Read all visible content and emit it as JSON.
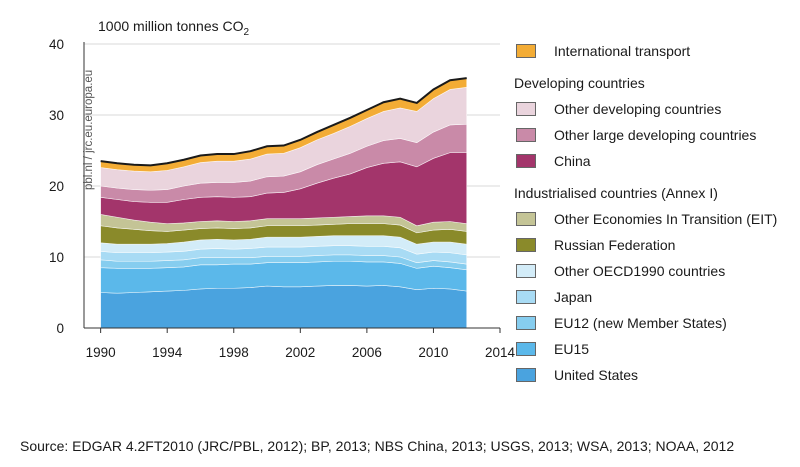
{
  "chart_data": {
    "type": "area",
    "ylabel_main": "1000 million tonnes CO",
    "ylabel_sub": "2",
    "watermark": "pbl.nl / jrc.eu.europa.eu",
    "x_ticks": [
      "1990",
      "1994",
      "1998",
      "2002",
      "2006",
      "2010",
      "2014"
    ],
    "y_ticks": [
      "0",
      "10",
      "20",
      "30",
      "40"
    ],
    "xlim": [
      1989,
      2014
    ],
    "ylim": [
      0,
      40
    ],
    "x": [
      1990,
      1991,
      1992,
      1993,
      1994,
      1995,
      1996,
      1997,
      1998,
      1999,
      2000,
      2001,
      2002,
      2003,
      2004,
      2005,
      2006,
      2007,
      2008,
      2009,
      2010,
      2011,
      2012
    ],
    "series": [
      {
        "name": "United States",
        "color": "#4aa3df",
        "values": [
          5.0,
          4.9,
          5.0,
          5.1,
          5.2,
          5.3,
          5.5,
          5.6,
          5.6,
          5.7,
          5.9,
          5.8,
          5.8,
          5.9,
          6.0,
          6.0,
          5.9,
          6.0,
          5.8,
          5.4,
          5.6,
          5.5,
          5.2
        ]
      },
      {
        "name": "EU15",
        "color": "#5bb8ea",
        "values": [
          3.5,
          3.5,
          3.4,
          3.3,
          3.3,
          3.3,
          3.4,
          3.3,
          3.4,
          3.3,
          3.3,
          3.4,
          3.4,
          3.4,
          3.4,
          3.4,
          3.4,
          3.3,
          3.3,
          3.0,
          3.1,
          3.0,
          3.0
        ]
      },
      {
        "name": "EU12 (new Member States)",
        "color": "#86cdef",
        "values": [
          1.1,
          1.0,
          1.0,
          1.0,
          1.0,
          1.0,
          1.0,
          1.0,
          0.9,
          0.9,
          0.9,
          0.9,
          0.9,
          0.9,
          0.9,
          0.9,
          0.9,
          0.9,
          0.9,
          0.8,
          0.8,
          0.8,
          0.8
        ]
      },
      {
        "name": "Japan",
        "color": "#a8dbf4",
        "values": [
          1.2,
          1.2,
          1.2,
          1.2,
          1.2,
          1.2,
          1.2,
          1.3,
          1.2,
          1.3,
          1.3,
          1.3,
          1.3,
          1.3,
          1.3,
          1.3,
          1.3,
          1.3,
          1.3,
          1.2,
          1.2,
          1.3,
          1.3
        ]
      },
      {
        "name": "Other OECD1990 countries",
        "color": "#d3ecf8",
        "values": [
          1.2,
          1.2,
          1.2,
          1.2,
          1.2,
          1.3,
          1.3,
          1.3,
          1.3,
          1.3,
          1.4,
          1.4,
          1.4,
          1.4,
          1.4,
          1.4,
          1.5,
          1.5,
          1.5,
          1.4,
          1.4,
          1.5,
          1.5
        ]
      },
      {
        "name": "Russian Federation",
        "color": "#8a8a2a",
        "values": [
          2.4,
          2.3,
          2.1,
          1.9,
          1.7,
          1.7,
          1.6,
          1.6,
          1.6,
          1.6,
          1.6,
          1.6,
          1.6,
          1.6,
          1.6,
          1.7,
          1.7,
          1.7,
          1.7,
          1.6,
          1.7,
          1.8,
          1.8
        ]
      },
      {
        "name": "Other Economies In Transition (EIT)",
        "color": "#c4c496",
        "values": [
          1.6,
          1.5,
          1.3,
          1.2,
          1.1,
          1.0,
          1.0,
          1.0,
          1.0,
          1.0,
          1.0,
          1.0,
          1.0,
          1.0,
          1.0,
          1.0,
          1.1,
          1.1,
          1.1,
          1.0,
          1.1,
          1.1,
          1.1
        ]
      },
      {
        "name": "China",
        "color": "#a3356b",
        "values": [
          2.4,
          2.5,
          2.6,
          2.8,
          3.0,
          3.3,
          3.4,
          3.4,
          3.4,
          3.4,
          3.6,
          3.7,
          4.2,
          4.9,
          5.5,
          6.0,
          6.8,
          7.4,
          7.8,
          8.3,
          9.0,
          9.7,
          10.0
        ]
      },
      {
        "name": "Other large developing countries",
        "color": "#c98aa8",
        "values": [
          1.6,
          1.6,
          1.7,
          1.7,
          1.8,
          1.9,
          2.0,
          2.0,
          2.1,
          2.2,
          2.3,
          2.3,
          2.4,
          2.6,
          2.7,
          2.9,
          3.0,
          3.2,
          3.3,
          3.4,
          3.7,
          3.9,
          4.0
        ]
      },
      {
        "name": "Other developing countries",
        "color": "#ead4dd",
        "values": [
          2.6,
          2.6,
          2.6,
          2.6,
          2.7,
          2.7,
          2.9,
          3.0,
          3.0,
          3.1,
          3.2,
          3.2,
          3.4,
          3.5,
          3.6,
          3.8,
          3.9,
          4.1,
          4.3,
          4.4,
          4.7,
          5.0,
          5.2
        ]
      },
      {
        "name": "International transport",
        "color": "#f3ac35",
        "values": [
          0.9,
          0.9,
          0.9,
          0.9,
          1.0,
          1.0,
          1.0,
          1.0,
          1.0,
          1.1,
          1.1,
          1.1,
          1.1,
          1.1,
          1.2,
          1.2,
          1.2,
          1.3,
          1.3,
          1.2,
          1.3,
          1.3,
          1.3
        ]
      }
    ],
    "legend": {
      "top_item": {
        "label": "International transport",
        "color": "#f3ac35"
      },
      "groups": [
        {
          "title": "Developing countries",
          "items": [
            {
              "label": "Other developing countries",
              "color": "#ead4dd"
            },
            {
              "label": "Other large developing countries",
              "color": "#c98aa8"
            },
            {
              "label": "China",
              "color": "#a3356b"
            }
          ]
        },
        {
          "title": "Industrialised countries (Annex I)",
          "items": [
            {
              "label": "Other Economies In Transition (EIT)",
              "color": "#c4c496"
            },
            {
              "label": "Russian Federation",
              "color": "#8a8a2a"
            },
            {
              "label": "Other OECD1990 countries",
              "color": "#d3ecf8"
            },
            {
              "label": "Japan",
              "color": "#a8dbf4"
            },
            {
              "label": "EU12 (new Member States)",
              "color": "#86cdef"
            },
            {
              "label": "EU15",
              "color": "#5bb8ea"
            },
            {
              "label": "United States",
              "color": "#4aa3df"
            }
          ]
        }
      ]
    }
  },
  "source": "Source: EDGAR 4.2FT2010 (JRC/PBL, 2012); BP, 2013; NBS China, 2013; USGS, 2013; WSA, 2013; NOAA, 2012"
}
